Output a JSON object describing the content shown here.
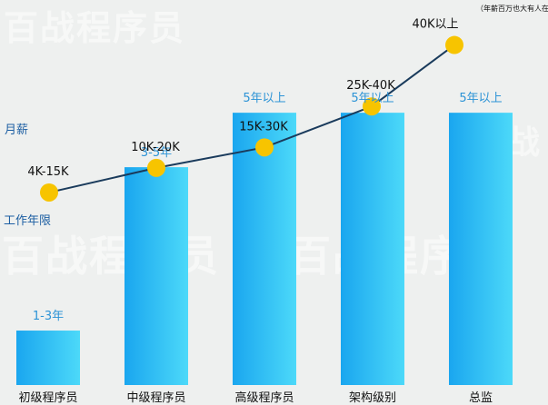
{
  "watermark": {
    "text": "百战程序员",
    "partial_text": "百战"
  },
  "colors": {
    "background": "#eef0ef",
    "bar_top": "#1aa6ef",
    "bar_bottom": "#4cd9f9",
    "line": "#1a3b5c",
    "marker": "#f7c400",
    "years_text": "#2c93d6",
    "salary_text": "#111111",
    "axis_label": "#1d5fa3"
  },
  "chart_data": {
    "type": "bar",
    "categories": [
      "初级程序员",
      "中级程序员",
      "高级程序员",
      "架构级别",
      "总监"
    ],
    "bar_values": [
      1,
      4,
      5,
      5,
      5
    ],
    "bar_value_labels": [
      "1-3年",
      "3-5年",
      "5年以上",
      "5年以上",
      "5年以上"
    ],
    "bar_ylim": [
      0,
      6.67
    ],
    "bar_axis_label": "工作年限",
    "line_series": {
      "type": "line",
      "values": [
        4,
        10,
        15,
        25,
        40
      ],
      "value_labels": [
        "4K-15K",
        "10K-20K",
        "15K-30K",
        "25K-40K",
        "40K以上"
      ],
      "note": "（年薪百万也大有人在）",
      "ylim": [
        0,
        45
      ]
    },
    "line_axis_label": "月薪"
  }
}
